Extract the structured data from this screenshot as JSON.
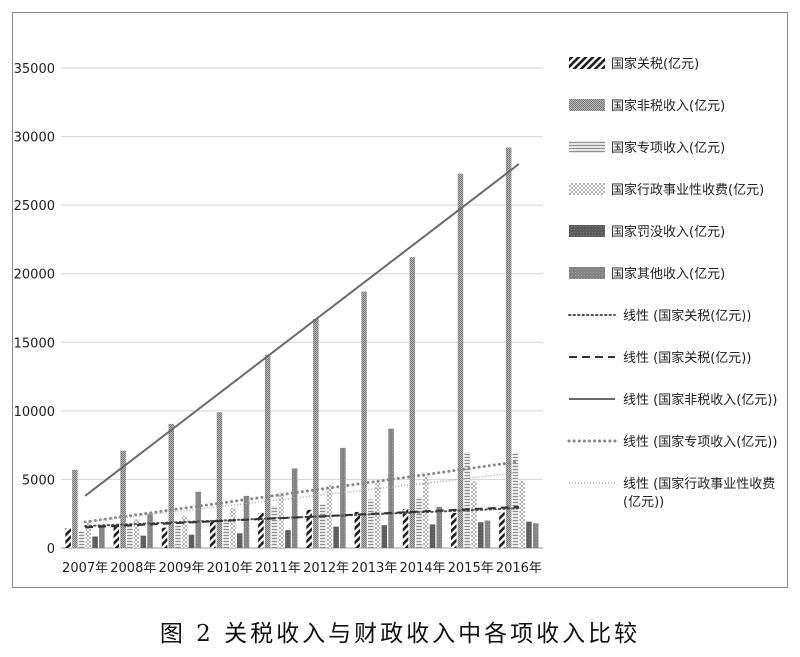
{
  "caption": "图 2 关税收入与财政收入中各项收入比较",
  "chart_data": {
    "type": "bar",
    "categories": [
      "2007年",
      "2008年",
      "2009年",
      "2010年",
      "2011年",
      "2012年",
      "2013年",
      "2014年",
      "2015年",
      "2016年"
    ],
    "ylim": [
      0,
      35000
    ],
    "yticks": [
      "0",
      "5000",
      "10000",
      "15000",
      "20000",
      "25000",
      "30000",
      "35000"
    ],
    "grid": true,
    "legend_position": "right",
    "series": [
      {
        "name": "国家关税(亿元)",
        "key": "tariff",
        "color": "#222222",
        "values": [
          1432,
          1770,
          1484,
          2028,
          2559,
          2783,
          2631,
          2843,
          2561,
          2603
        ]
      },
      {
        "name": "国家非税收入(亿元)",
        "key": "nontax",
        "color": "#9a9a9a",
        "values": [
          5700,
          7100,
          9050,
          9900,
          14100,
          16700,
          18700,
          21200,
          27300,
          29200
        ]
      },
      {
        "name": "国家专项收入(亿元)",
        "key": "special",
        "color": "#b0b0b0",
        "values": [
          1240,
          1560,
          1640,
          2040,
          3060,
          3230,
          3530,
          3710,
          6990,
          6910
        ]
      },
      {
        "name": "国家行政事业性收费(亿元)",
        "key": "admin",
        "color": "#c4c4c4",
        "values": [
          1900,
          2100,
          2320,
          2920,
          4040,
          4580,
          4780,
          5210,
          4870,
          4900
        ]
      },
      {
        "name": "国家罚没收入(亿元)",
        "key": "fines",
        "color": "#6e6e6e",
        "values": [
          840,
          900,
          970,
          1070,
          1300,
          1560,
          1660,
          1720,
          1880,
          1920
        ]
      },
      {
        "name": "国家其他收入(亿元)",
        "key": "other",
        "color": "#8a8a8a",
        "values": [
          1700,
          2500,
          4100,
          3800,
          5800,
          7300,
          8700,
          3000,
          2000,
          1800
        ]
      }
    ],
    "trendlines": [
      {
        "label": "线性 (国家关税(亿元))",
        "style": "dotted",
        "color": "#555555",
        "start": 1600,
        "end": 2900
      },
      {
        "label": "线性 (国家关税(亿元))",
        "style": "dashed",
        "color": "#333333",
        "start": 1500,
        "end": 3000
      },
      {
        "label": "线性 (国家非税收入(亿元))",
        "style": "solid",
        "color": "#6a6a6a",
        "start": 3800,
        "end": 28000
      },
      {
        "label": "线性 (国家专项收入(亿元))",
        "style": "dots",
        "color": "#888888",
        "start": 1900,
        "end": 6300
      },
      {
        "label": "线性 (国家行政事业性收费(亿元))",
        "label_lines": [
          "线性 (国家行政事业性收费",
          "(亿元))"
        ],
        "style": "fine-dotted",
        "color": "#aaaaaa",
        "start": 1900,
        "end": 5500
      }
    ]
  }
}
